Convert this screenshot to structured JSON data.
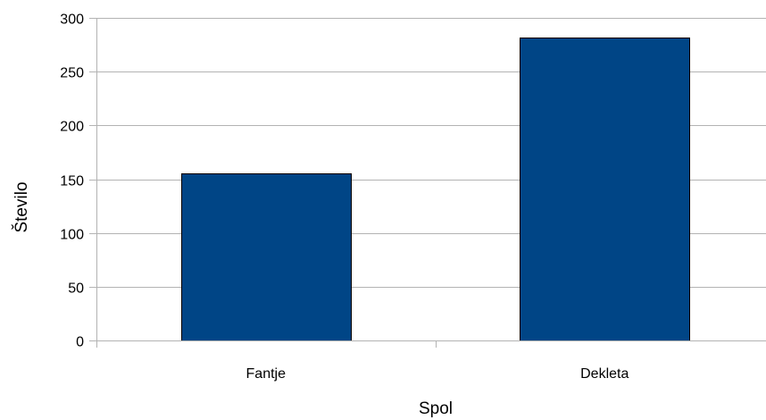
{
  "chart_data": {
    "type": "bar",
    "title": "",
    "xlabel": "Spol",
    "ylabel": "Število",
    "categories": [
      "Fantje",
      "Dekleta"
    ],
    "values": [
      155,
      282
    ],
    "ylim": [
      0,
      300
    ],
    "yticks": [
      0,
      50,
      100,
      150,
      200,
      250,
      300
    ],
    "grid": true,
    "legend": "none",
    "bar_color": "#004586"
  }
}
